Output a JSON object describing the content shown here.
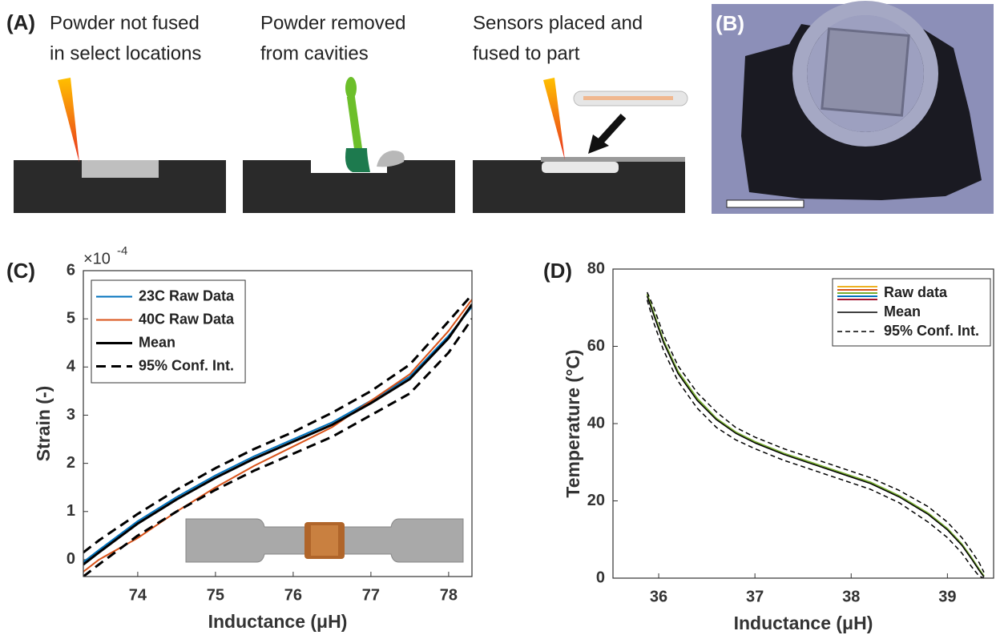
{
  "panels": {
    "a": {
      "label": "(A)",
      "captions": [
        [
          "Powder not fused",
          "in select locations"
        ],
        [
          "Powder removed",
          "from cavities"
        ],
        [
          "Sensors placed and",
          "fused to part"
        ]
      ]
    },
    "b": {
      "label": "(B)"
    }
  },
  "chart_data": [
    {
      "type": "line",
      "label": "(C)",
      "xlabel": "Inductance (μH)",
      "ylabel": "Strain (-)",
      "exponent": [
        "×10",
        "-4"
      ],
      "x": [
        73.3,
        73.5,
        74,
        74.5,
        75,
        75.5,
        76,
        76.5,
        77,
        77.5,
        78,
        78.3
      ],
      "xlim": [
        73.3,
        78.3
      ],
      "xticks": [
        74,
        75,
        76,
        77,
        78
      ],
      "ylim": [
        -0.35,
        6
      ],
      "yticks": [
        0,
        1,
        2,
        3,
        4,
        5,
        6
      ],
      "legend": "upper left",
      "series": [
        {
          "name": "23C Raw Data",
          "color": "#0072bd",
          "width": 2,
          "values": [
            -0.05,
            0.2,
            0.8,
            1.3,
            1.75,
            2.15,
            2.5,
            2.85,
            3.3,
            3.8,
            4.65,
            5.25
          ]
        },
        {
          "name": "40C Raw Data",
          "color": "#d95319",
          "width": 2,
          "values": [
            -0.25,
            0.0,
            0.45,
            1.0,
            1.5,
            1.95,
            2.35,
            2.75,
            3.3,
            3.85,
            4.75,
            5.4
          ]
        },
        {
          "name": "Mean",
          "color": "#000000",
          "width": 3,
          "values": [
            -0.1,
            0.15,
            0.75,
            1.25,
            1.7,
            2.1,
            2.45,
            2.8,
            3.25,
            3.75,
            4.6,
            5.3
          ]
        },
        {
          "name": "95% Conf. Int.",
          "color": "#000000",
          "width": 3,
          "style": "dashed",
          "values": [
            0.15,
            0.4,
            0.95,
            1.45,
            1.9,
            2.3,
            2.65,
            3.05,
            3.5,
            4.05,
            4.95,
            5.5
          ],
          "lower_values": [
            -0.35,
            -0.1,
            0.5,
            1.0,
            1.45,
            1.85,
            2.2,
            2.55,
            3.0,
            3.45,
            4.3,
            5.0
          ]
        }
      ]
    },
    {
      "type": "line",
      "label": "(D)",
      "xlabel": "Inductance (μH)",
      "ylabel": "Temperature (°C)",
      "x": [
        35.88,
        35.95,
        36.05,
        36.2,
        36.4,
        36.6,
        36.8,
        37,
        37.3,
        37.6,
        37.9,
        38.2,
        38.5,
        38.8,
        39,
        39.15,
        39.25,
        39.33,
        39.38
      ],
      "xlim": [
        35.525,
        39.48
      ],
      "xticks": [
        36,
        37,
        38,
        39
      ],
      "ylim": [
        0,
        80
      ],
      "yticks": [
        0,
        20,
        40,
        60,
        80
      ],
      "legend": "upper right",
      "series": [
        {
          "name": "Raw data",
          "colors": [
            "#edb120",
            "#d95319",
            "#77ac30",
            "#0072bd",
            "#a2142f"
          ],
          "color": "#77ac30",
          "width": 2,
          "values": [
            73.5,
            68.5,
            61.5,
            53.5,
            46.5,
            41.3,
            37.8,
            35.3,
            32.3,
            29.8,
            27.3,
            24.8,
            21.3,
            16.8,
            12.8,
            8.8,
            5.3,
            2.3,
            0.5
          ]
        },
        {
          "name": "Mean",
          "color": "#000000",
          "width": 1.5,
          "values": [
            73,
            68,
            61,
            53,
            46,
            41,
            37.5,
            35,
            32,
            29.5,
            27,
            24.5,
            21,
            16.5,
            12.5,
            8.5,
            5,
            2,
            0.3
          ]
        },
        {
          "name": "95% Conf. Int.",
          "color": "#000000",
          "width": 1.5,
          "style": "dashed",
          "values": [
            74,
            70,
            63,
            55,
            48,
            43,
            39,
            36.5,
            33.5,
            31,
            28.5,
            26,
            22.7,
            18.5,
            14.5,
            10.5,
            7,
            4,
            1.5
          ],
          "lower_values": [
            72,
            66,
            59,
            51,
            44,
            39,
            35.8,
            33.5,
            30.5,
            28,
            25.5,
            23,
            19.5,
            14.5,
            10.5,
            6.5,
            3,
            0.5,
            0
          ]
        }
      ]
    }
  ]
}
